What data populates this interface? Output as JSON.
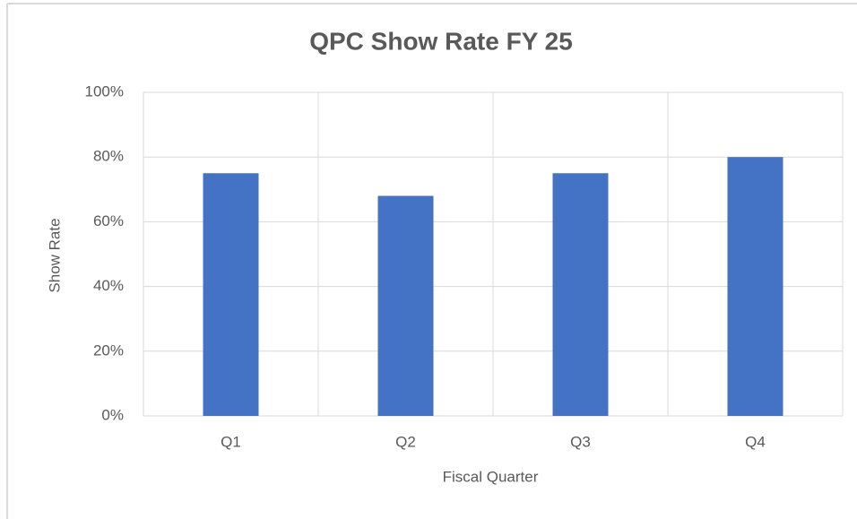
{
  "chart_data": {
    "type": "bar",
    "title": "QPC Show Rate FY 25",
    "categories": [
      "Q1",
      "Q2",
      "Q3",
      "Q4"
    ],
    "values": [
      75,
      68,
      75,
      80
    ],
    "color": "#4472c4",
    "xlabel": "Fiscal Quarter",
    "ylabel": "Show Rate",
    "ylim": [
      0,
      100
    ],
    "yticks": [
      {
        "value": 0,
        "label": "0%"
      },
      {
        "value": 20,
        "label": "20%"
      },
      {
        "value": 40,
        "label": "40%"
      },
      {
        "value": 60,
        "label": "60%"
      },
      {
        "value": 80,
        "label": "80%"
      },
      {
        "value": 100,
        "label": "100%"
      }
    ],
    "grid": true
  }
}
